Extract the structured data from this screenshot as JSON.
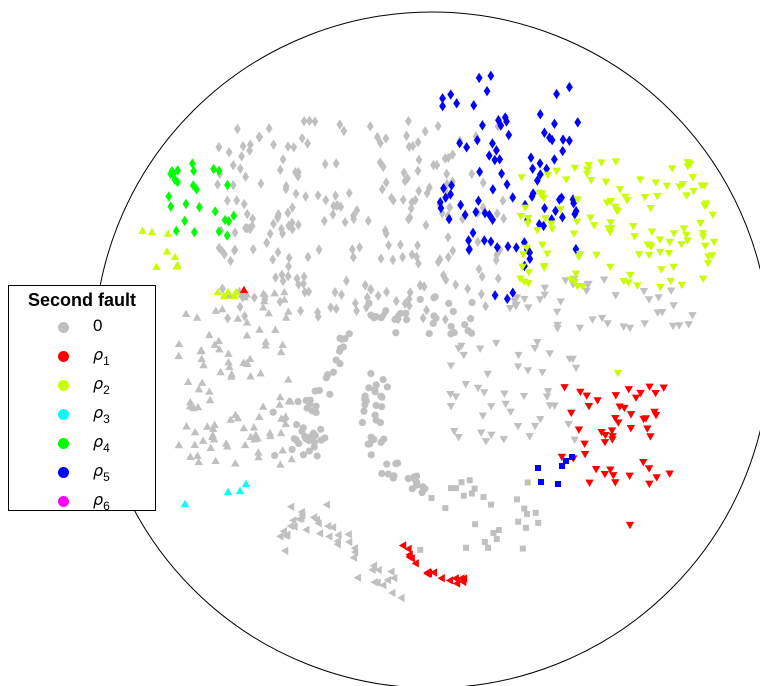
{
  "chart_data": {
    "type": "scatter",
    "title": "",
    "legend": {
      "title": "Second fault",
      "placement": "left",
      "entries": [
        {
          "label": "0",
          "color": "#c0c0c0"
        },
        {
          "symbol": "ρ",
          "sub": "1",
          "color": "#ff0000"
        },
        {
          "symbol": "ρ",
          "sub": "2",
          "color": "#c8ff00"
        },
        {
          "symbol": "ρ",
          "sub": "3",
          "color": "#00ffff"
        },
        {
          "symbol": "ρ",
          "sub": "4",
          "color": "#00ff00"
        },
        {
          "symbol": "ρ",
          "sub": "5",
          "color": "#0000ff"
        },
        {
          "symbol": "ρ",
          "sub": "6",
          "color": "#ff00ff"
        }
      ]
    },
    "first_fault_markers": [
      "circle",
      "square",
      "triangle-up",
      "triangle-down",
      "triangle-left",
      "diamond"
    ],
    "boundary": "circle",
    "grid": false,
    "axes": false
  }
}
